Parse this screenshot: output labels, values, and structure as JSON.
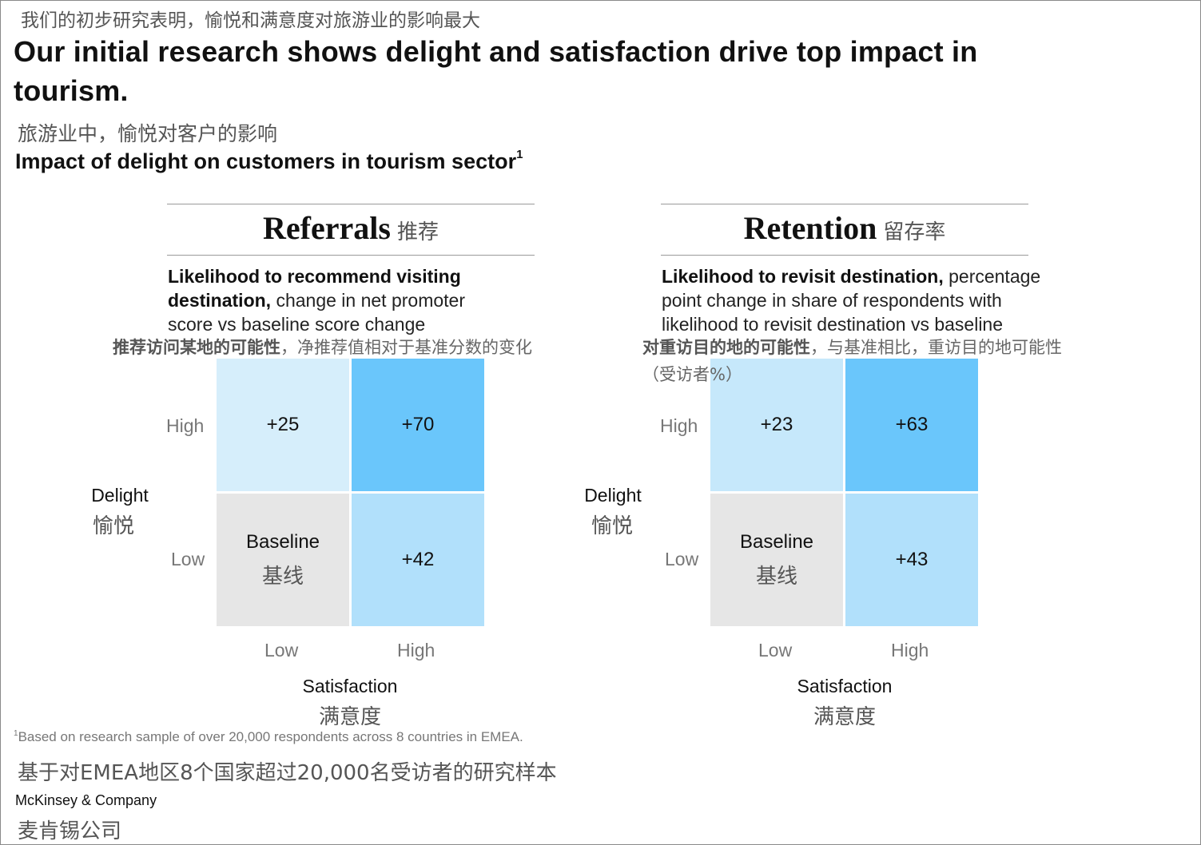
{
  "header": {
    "title_cn": "我们的初步研究表明，愉悦和满意度对旅游业的影响最大",
    "title_en": "Our initial research shows delight and satisfaction drive top impact in tourism.",
    "subtitle_cn": "旅游业中，愉悦对客户的影响",
    "subtitle_en": "Impact of delight on customers in tourism sector",
    "subtitle_footnote_mark": "1"
  },
  "chart_data": [
    {
      "type": "heatmap",
      "title": "Referrals",
      "title_cn": "推荐",
      "description_bold": "Likelihood to recommend visiting destination,",
      "description_rest": " change in net promoter score vs baseline score change",
      "description_cn_bold": "推荐访问某地的可能性",
      "description_cn_rest": "，净推荐值相对于基准分数的变化",
      "xlabel": "Satisfaction",
      "xlabel_cn": "满意度",
      "ylabel": "Delight",
      "ylabel_cn": "愉悦",
      "x_categories": [
        "Low",
        "High"
      ],
      "y_categories": [
        "High",
        "Low"
      ],
      "cells": [
        {
          "delight": "High",
          "satisfaction": "Low",
          "label": "+25",
          "value": 25,
          "color": "#d6eefb"
        },
        {
          "delight": "High",
          "satisfaction": "High",
          "label": "+70",
          "value": 70,
          "color": "#6ac6fb"
        },
        {
          "delight": "Low",
          "satisfaction": "Low",
          "label": "Baseline",
          "label_cn": "基线",
          "value": 0,
          "color": "#e6e6e6"
        },
        {
          "delight": "Low",
          "satisfaction": "High",
          "label": "+42",
          "value": 42,
          "color": "#b1e0fb"
        }
      ]
    },
    {
      "type": "heatmap",
      "title": "Retention",
      "title_cn": "留存率",
      "description_bold": "Likelihood to revisit destination,",
      "description_rest": " percentage point change in share of respondents with likelihood to revisit destination vs baseline",
      "description_cn_bold": "对重访目的地的可能性",
      "description_cn_rest": "，与基准相比，重访目的地可能性（受访者%）",
      "xlabel": "Satisfaction",
      "xlabel_cn": "满意度",
      "ylabel": "Delight",
      "ylabel_cn": "愉悦",
      "x_categories": [
        "Low",
        "High"
      ],
      "y_categories": [
        "High",
        "Low"
      ],
      "cells": [
        {
          "delight": "High",
          "satisfaction": "Low",
          "label": "+23",
          "value": 23,
          "color": "#c6e8fb"
        },
        {
          "delight": "High",
          "satisfaction": "High",
          "label": "+63",
          "value": 63,
          "color": "#6ac6fb"
        },
        {
          "delight": "Low",
          "satisfaction": "Low",
          "label": "Baseline",
          "label_cn": "基线",
          "value": 0,
          "color": "#e6e6e6"
        },
        {
          "delight": "Low",
          "satisfaction": "High",
          "label": "+43",
          "value": 43,
          "color": "#b1e0fb"
        }
      ]
    }
  ],
  "footer": {
    "footnote_mark": "1",
    "footnote_en": "Based on research sample of over 20,000 respondents across 8 countries in EMEA.",
    "footnote_cn": "基于对EMEA地区8个国家超过20,000名受访者的研究样本",
    "brand_en": "McKinsey & Company",
    "brand_cn": "麦肯锡公司"
  }
}
